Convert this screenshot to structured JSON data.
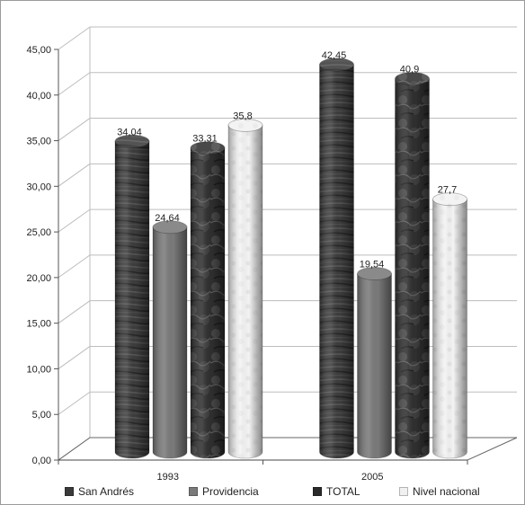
{
  "chart_data": {
    "type": "bar",
    "style": "3d-cylinder",
    "categories": [
      "1993",
      "2005"
    ],
    "series": [
      {
        "name": "San Andrés",
        "values": [
          34.04,
          42.45
        ],
        "labels": [
          "34,04",
          "42,45"
        ],
        "color": "#3a3a3a"
      },
      {
        "name": "Providencia",
        "values": [
          24.64,
          19.54
        ],
        "labels": [
          "24,64",
          "19,54"
        ],
        "color": "#7a7a7a"
      },
      {
        "name": "TOTAL",
        "values": [
          33.31,
          40.9
        ],
        "labels": [
          "33,31",
          "40,9"
        ],
        "color": "#2a2a2a"
      },
      {
        "name": "Nivel nacional",
        "values": [
          35.8,
          27.7
        ],
        "labels": [
          "35,8",
          "27,7"
        ],
        "color": "#f2f2f2"
      }
    ],
    "yticks": [
      "0,00",
      "5,00",
      "10,00",
      "15,00",
      "20,00",
      "25,00",
      "30,00",
      "35,00",
      "40,00",
      "45,00"
    ],
    "ylim": [
      0,
      45
    ],
    "grid": true,
    "legend_position": "bottom"
  }
}
